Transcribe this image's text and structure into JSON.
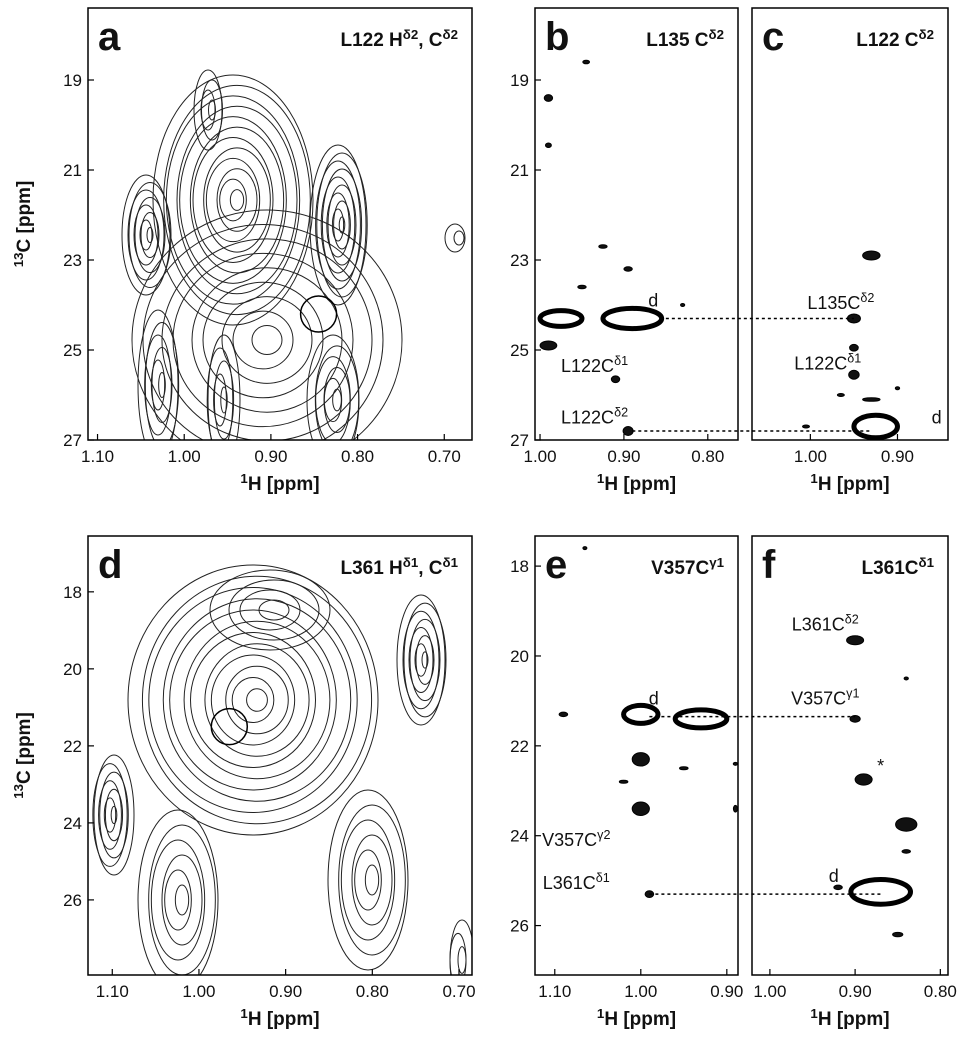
{
  "chart_data": [
    {
      "type": "contour",
      "panel_label": "a",
      "title": [
        {
          "text": "L122 H"
        },
        {
          "text": "δ2",
          "sup": true
        },
        {
          "text": ", C"
        },
        {
          "text": "δ2",
          "sup": true
        }
      ],
      "x_label": [
        {
          "text": "1",
          "sup": true
        },
        {
          "text": "H [ppm]"
        }
      ],
      "y_label": [
        {
          "text": "13",
          "sup": true
        },
        {
          "text": "C [ppm]"
        }
      ],
      "xlim": [
        1.111,
        0.668
      ],
      "ylim": [
        27,
        17.4
      ],
      "xticks": [
        {
          "value": 1.1,
          "label": "1.10"
        },
        {
          "value": 1.0,
          "label": "1.00"
        },
        {
          "value": 0.9,
          "label": "0.90"
        },
        {
          "value": 0.8,
          "label": "0.80"
        },
        {
          "value": 0.7,
          "label": "0.70"
        }
      ],
      "yticks": [
        19,
        21,
        23,
        25,
        27
      ],
      "circle": {
        "x": 0.845,
        "y": 24.2
      }
    },
    {
      "type": "peaks",
      "panel_label": "b",
      "title": [
        {
          "text": "L135 C"
        },
        {
          "text": "δ2",
          "sup": true
        }
      ],
      "x_label": [
        {
          "text": "1",
          "sup": true
        },
        {
          "text": "H [ppm]"
        }
      ],
      "xlim": [
        1.006,
        0.764
      ],
      "ylim": [
        27,
        17.4
      ],
      "xticks": [
        {
          "value": 1.0,
          "label": "1.00"
        },
        {
          "value": 0.9,
          "label": "0.90"
        },
        {
          "value": 0.8,
          "label": "0.80"
        }
      ],
      "yticks": [
        19,
        21,
        23,
        25,
        27
      ],
      "peaks": {
        "x": [
          0.99,
          0.99,
          0.945,
          0.925,
          0.895,
          0.95,
          0.975,
          0.89,
          0.99,
          0.91,
          0.895,
          0.83
        ],
        "y": [
          19.4,
          20.45,
          18.6,
          22.7,
          23.2,
          23.6,
          24.3,
          24.3,
          24.9,
          25.65,
          26.8,
          24.0
        ],
        "widths": [
          0.01,
          0.007,
          0.008,
          0.01,
          0.01,
          0.01,
          0.05,
          0.07,
          0.02,
          0.01,
          0.012,
          0.005
        ],
        "heights": [
          0.15,
          0.1,
          0.08,
          0.08,
          0.1,
          0.08,
          0.35,
          0.45,
          0.2,
          0.15,
          0.2,
          0.05
        ]
      },
      "annotations": [
        {
          "text": [
            {
              "text": "d"
            }
          ],
          "x": 0.865,
          "y": 23.9
        },
        {
          "text": [
            {
              "text": "L122C"
            },
            {
              "text": "δ1",
              "sup": true
            }
          ],
          "x": 0.935,
          "y": 25.35
        },
        {
          "text": [
            {
              "text": "L122C"
            },
            {
              "text": "δ2",
              "sup": true
            }
          ],
          "x": 0.935,
          "y": 26.5
        }
      ],
      "connectors": [
        {
          "y": 24.3,
          "x": 0.85,
          "next_x": 0.95
        },
        {
          "y": 26.8,
          "x": 0.89,
          "next_x": 0.93
        }
      ]
    },
    {
      "type": "peaks",
      "panel_label": "c",
      "title": [
        {
          "text": "L122 C"
        },
        {
          "text": "δ2",
          "sup": true
        }
      ],
      "x_label": [
        {
          "text": "1",
          "sup": true
        },
        {
          "text": "H [ppm]"
        }
      ],
      "xlim": [
        1.067,
        0.842
      ],
      "ylim": [
        27,
        17.4
      ],
      "xticks": [
        {
          "value": 1.0,
          "label": "1.00"
        },
        {
          "value": 0.9,
          "label": "0.90"
        }
      ],
      "peaks": {
        "x": [
          0.93,
          0.95,
          0.95,
          0.95,
          0.965,
          0.9,
          0.925,
          1.005,
          0.93
        ],
        "y": [
          22.9,
          24.3,
          24.95,
          25.55,
          26.0,
          25.85,
          26.7,
          26.7,
          26.1
        ],
        "widths": [
          0.02,
          0.015,
          0.01,
          0.012,
          0.008,
          0.005,
          0.05,
          0.008,
          0.02
        ],
        "heights": [
          0.2,
          0.2,
          0.15,
          0.2,
          0.06,
          0.06,
          0.5,
          0.06,
          0.08
        ]
      },
      "annotations": [
        {
          "text": [
            {
              "text": "L135C"
            },
            {
              "text": "δ2",
              "sup": true
            }
          ],
          "x": 0.965,
          "y": 23.95
        },
        {
          "text": [
            {
              "text": "L122C"
            },
            {
              "text": "δ1",
              "sup": true
            }
          ],
          "x": 0.98,
          "y": 25.3
        },
        {
          "text": [
            {
              "text": "d"
            }
          ],
          "x": 0.855,
          "y": 26.5
        }
      ]
    },
    {
      "type": "contour",
      "panel_label": "d",
      "title": [
        {
          "text": "L361 H"
        },
        {
          "text": "δ1",
          "sup": true
        },
        {
          "text": ", C"
        },
        {
          "text": "δ1",
          "sup": true
        }
      ],
      "x_label": [
        {
          "text": "1",
          "sup": true
        },
        {
          "text": "H [ppm]"
        }
      ],
      "y_label": [
        {
          "text": "13",
          "sup": true
        },
        {
          "text": "C [ppm]"
        }
      ],
      "xlim": [
        1.128,
        0.685
      ],
      "ylim": [
        27.95,
        16.55
      ],
      "xticks": [
        {
          "value": 1.1,
          "label": "1.10"
        },
        {
          "value": 1.0,
          "label": "1.00"
        },
        {
          "value": 0.9,
          "label": "0.90"
        },
        {
          "value": 0.8,
          "label": "0.80"
        },
        {
          "value": 0.7,
          "label": "0.70"
        }
      ],
      "yticks": [
        18,
        20,
        22,
        24,
        26
      ],
      "circle": {
        "x": 0.965,
        "y": 21.5
      }
    },
    {
      "type": "peaks",
      "panel_label": "e",
      "title": [
        {
          "text": "V357C"
        },
        {
          "text": "γ1",
          "sup": true
        }
      ],
      "x_label": [
        {
          "text": "1",
          "sup": true
        },
        {
          "text": "H [ppm]"
        }
      ],
      "xlim": [
        1.123,
        0.887
      ],
      "ylim": [
        27.1,
        17.33
      ],
      "xticks": [
        {
          "value": 1.1,
          "label": "1.10"
        },
        {
          "value": 1.0,
          "label": "1.00"
        },
        {
          "value": 0.9,
          "label": "0.90"
        }
      ],
      "yticks": [
        18,
        20,
        22,
        24,
        26
      ],
      "peaks": {
        "x": [
          1.0,
          0.93,
          1.09,
          1.0,
          1.0,
          0.99,
          0.95,
          0.89,
          0.89,
          1.02,
          1.065
        ],
        "y": [
          21.3,
          21.4,
          21.3,
          22.3,
          23.4,
          25.3,
          22.5,
          22.4,
          23.4,
          22.8,
          17.6
        ],
        "widths": [
          0.04,
          0.06,
          0.01,
          0.02,
          0.02,
          0.01,
          0.01,
          0.005,
          0.004,
          0.01,
          0.003
        ],
        "heights": [
          0.4,
          0.4,
          0.1,
          0.3,
          0.3,
          0.15,
          0.05,
          0.05,
          0.15,
          0.05,
          0.05
        ]
      },
      "annotations": [
        {
          "text": [
            {
              "text": "d"
            }
          ],
          "x": 0.985,
          "y": 20.95
        },
        {
          "text": [
            {
              "text": "V357C"
            },
            {
              "text": "γ2",
              "sup": true
            }
          ],
          "x": 1.075,
          "y": 24.1
        },
        {
          "text": [
            {
              "text": "L361C"
            },
            {
              "text": "δ1",
              "sup": true
            }
          ],
          "x": 1.075,
          "y": 25.05
        }
      ],
      "connectors": [
        {
          "y": 21.35,
          "x": 0.99,
          "next_x": 0.9
        },
        {
          "y": 25.3,
          "x": 0.99,
          "next_x": 0.87
        }
      ]
    },
    {
      "type": "peaks",
      "panel_label": "f",
      "title": [
        {
          "text": "L361C"
        },
        {
          "text": "δ1",
          "sup": true
        }
      ],
      "x_label": [
        {
          "text": "1",
          "sup": true
        },
        {
          "text": "H [ppm]"
        }
      ],
      "xlim": [
        1.021,
        0.791
      ],
      "ylim": [
        27.1,
        17.33
      ],
      "xticks": [
        {
          "value": 1.0,
          "label": "1.00"
        },
        {
          "value": 0.9,
          "label": "0.90"
        },
        {
          "value": 0.8,
          "label": "0.80"
        }
      ],
      "peaks": {
        "x": [
          0.9,
          0.84,
          0.9,
          0.89,
          0.84,
          0.84,
          0.87,
          0.85,
          0.92
        ],
        "y": [
          19.65,
          20.5,
          21.4,
          22.75,
          23.75,
          24.35,
          25.25,
          26.2,
          25.15
        ],
        "widths": [
          0.02,
          0.005,
          0.012,
          0.02,
          0.025,
          0.01,
          0.07,
          0.012,
          0.01
        ],
        "heights": [
          0.2,
          0.06,
          0.15,
          0.25,
          0.3,
          0.08,
          0.55,
          0.1,
          0.1
        ]
      },
      "annotations": [
        {
          "text": [
            {
              "text": "L361C"
            },
            {
              "text": "δ2",
              "sup": true
            }
          ],
          "x": 0.935,
          "y": 19.3
        },
        {
          "text": [
            {
              "text": "V357C"
            },
            {
              "text": "γ1",
              "sup": true
            }
          ],
          "x": 0.935,
          "y": 20.95
        },
        {
          "text": [
            {
              "text": "*"
            }
          ],
          "x": 0.87,
          "y": 22.45
        },
        {
          "text": [
            {
              "text": "d"
            }
          ],
          "x": 0.925,
          "y": 24.9
        }
      ]
    }
  ]
}
